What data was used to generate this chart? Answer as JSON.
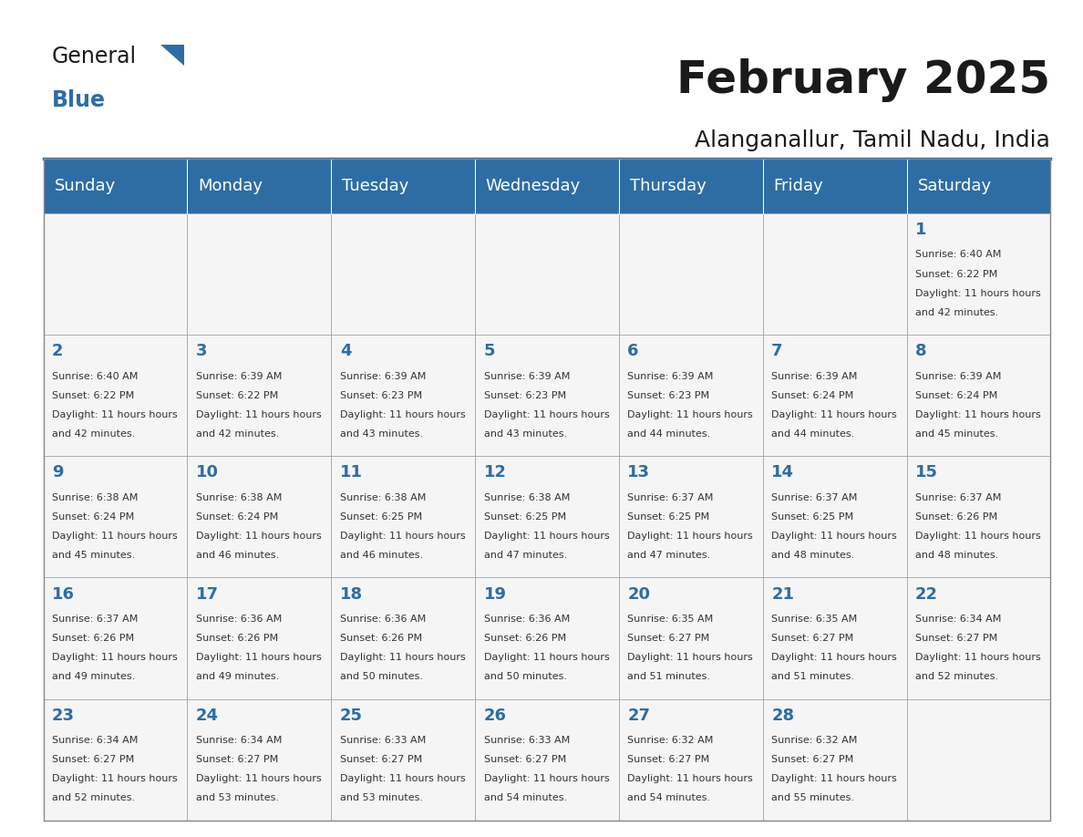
{
  "title": "February 2025",
  "subtitle": "Alanganallur, Tamil Nadu, India",
  "header_bg": "#2E6DA4",
  "header_text": "#FFFFFF",
  "cell_bg": "#F5F5F5",
  "day_num_color": "#2E6DA4",
  "text_color": "#333333",
  "days_of_week": [
    "Sunday",
    "Monday",
    "Tuesday",
    "Wednesday",
    "Thursday",
    "Friday",
    "Saturday"
  ],
  "calendar_data": [
    [
      null,
      null,
      null,
      null,
      null,
      null,
      1
    ],
    [
      2,
      3,
      4,
      5,
      6,
      7,
      8
    ],
    [
      9,
      10,
      11,
      12,
      13,
      14,
      15
    ],
    [
      16,
      17,
      18,
      19,
      20,
      21,
      22
    ],
    [
      23,
      24,
      25,
      26,
      27,
      28,
      null
    ]
  ],
  "sunrise_data": {
    "1": "6:40 AM",
    "2": "6:40 AM",
    "3": "6:39 AM",
    "4": "6:39 AM",
    "5": "6:39 AM",
    "6": "6:39 AM",
    "7": "6:39 AM",
    "8": "6:39 AM",
    "9": "6:38 AM",
    "10": "6:38 AM",
    "11": "6:38 AM",
    "12": "6:38 AM",
    "13": "6:37 AM",
    "14": "6:37 AM",
    "15": "6:37 AM",
    "16": "6:37 AM",
    "17": "6:36 AM",
    "18": "6:36 AM",
    "19": "6:36 AM",
    "20": "6:35 AM",
    "21": "6:35 AM",
    "22": "6:34 AM",
    "23": "6:34 AM",
    "24": "6:34 AM",
    "25": "6:33 AM",
    "26": "6:33 AM",
    "27": "6:32 AM",
    "28": "6:32 AM"
  },
  "sunset_data": {
    "1": "6:22 PM",
    "2": "6:22 PM",
    "3": "6:22 PM",
    "4": "6:23 PM",
    "5": "6:23 PM",
    "6": "6:23 PM",
    "7": "6:24 PM",
    "8": "6:24 PM",
    "9": "6:24 PM",
    "10": "6:24 PM",
    "11": "6:25 PM",
    "12": "6:25 PM",
    "13": "6:25 PM",
    "14": "6:25 PM",
    "15": "6:26 PM",
    "16": "6:26 PM",
    "17": "6:26 PM",
    "18": "6:26 PM",
    "19": "6:26 PM",
    "20": "6:27 PM",
    "21": "6:27 PM",
    "22": "6:27 PM",
    "23": "6:27 PM",
    "24": "6:27 PM",
    "25": "6:27 PM",
    "26": "6:27 PM",
    "27": "6:27 PM",
    "28": "6:27 PM"
  },
  "daylight_data": {
    "1": "11 hours and 42 minutes.",
    "2": "11 hours and 42 minutes.",
    "3": "11 hours and 42 minutes.",
    "4": "11 hours and 43 minutes.",
    "5": "11 hours and 43 minutes.",
    "6": "11 hours and 44 minutes.",
    "7": "11 hours and 44 minutes.",
    "8": "11 hours and 45 minutes.",
    "9": "11 hours and 45 minutes.",
    "10": "11 hours and 46 minutes.",
    "11": "11 hours and 46 minutes.",
    "12": "11 hours and 47 minutes.",
    "13": "11 hours and 47 minutes.",
    "14": "11 hours and 48 minutes.",
    "15": "11 hours and 48 minutes.",
    "16": "11 hours and 49 minutes.",
    "17": "11 hours and 49 minutes.",
    "18": "11 hours and 50 minutes.",
    "19": "11 hours and 50 minutes.",
    "20": "11 hours and 51 minutes.",
    "21": "11 hours and 51 minutes.",
    "22": "11 hours and 52 minutes.",
    "23": "11 hours and 52 minutes.",
    "24": "11 hours and 53 minutes.",
    "25": "11 hours and 53 minutes.",
    "26": "11 hours and 54 minutes.",
    "27": "11 hours and 54 minutes.",
    "28": "11 hours and 55 minutes."
  }
}
